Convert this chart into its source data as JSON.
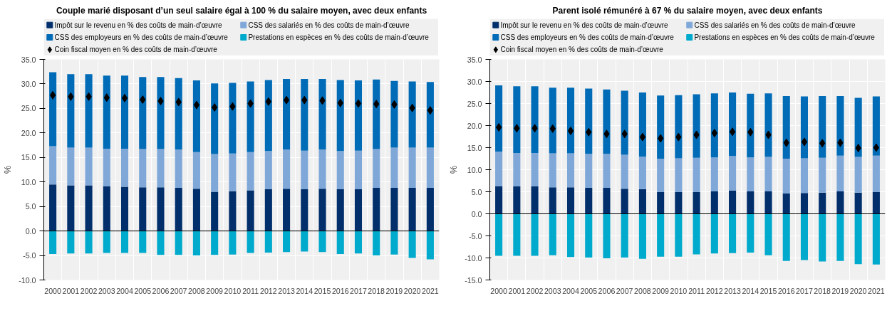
{
  "chart_data": [
    {
      "type": "bar",
      "title": "Couple marié disposant d’un seul salaire égal à 100 % du salaire moyen, avec deux enfants",
      "ylabel": "%",
      "stacked": true,
      "legend": "top",
      "grid": true,
      "categories": [
        "2000",
        "2001",
        "2002",
        "2003",
        "2004",
        "2005",
        "2006",
        "2007",
        "2008",
        "2009",
        "2010",
        "2011",
        "2012",
        "2013",
        "2014",
        "2015",
        "2016",
        "2017",
        "2018",
        "2019",
        "2020",
        "2021"
      ],
      "ylim": [
        -10,
        35
      ],
      "yticks": [
        {
          "value": -10,
          "label": "-10.0"
        },
        {
          "value": -5,
          "label": "-5.0"
        },
        {
          "value": 0,
          "label": "0.0"
        },
        {
          "value": 5,
          "label": "5.0"
        },
        {
          "value": 10,
          "label": "10.0"
        },
        {
          "value": 15,
          "label": "15.0"
        },
        {
          "value": 20,
          "label": "20.0"
        },
        {
          "value": 25,
          "label": "25.0"
        },
        {
          "value": 30,
          "label": "30.0"
        },
        {
          "value": 35,
          "label": "35.0"
        }
      ],
      "series": [
        {
          "name": "Impôt sur le revenu en % des coûts de main-d’œuvre",
          "color": "#002f6c",
          "values": [
            9.5,
            9.3,
            9.3,
            9.1,
            9.0,
            8.9,
            8.9,
            8.8,
            8.6,
            8.0,
            8.1,
            8.3,
            8.5,
            8.6,
            8.5,
            8.6,
            8.5,
            8.5,
            8.8,
            8.8,
            8.8,
            8.8
          ]
        },
        {
          "name": "CSS des salariés en % des coûts de main-d’œuvre",
          "color": "#7fa8d9",
          "values": [
            7.8,
            7.7,
            7.7,
            7.7,
            7.8,
            7.8,
            7.8,
            7.8,
            7.5,
            7.7,
            7.7,
            7.8,
            7.8,
            8.0,
            7.9,
            8.0,
            7.8,
            7.9,
            7.9,
            8.2,
            8.2,
            8.2
          ]
        },
        {
          "name": "CSS des employeurs en % des coûts de main-d’œuvre",
          "color": "#006bb6",
          "values": [
            15.1,
            15.0,
            15.0,
            14.9,
            14.9,
            14.7,
            14.7,
            14.6,
            14.6,
            14.4,
            14.4,
            14.4,
            14.5,
            14.4,
            14.6,
            14.4,
            14.5,
            14.3,
            14.2,
            13.6,
            13.5,
            13.4
          ]
        },
        {
          "name": "Prestations en espèces en % des coûts de main-d’œuvre",
          "color": "#00aacc",
          "values": [
            -4.7,
            -4.6,
            -4.6,
            -4.5,
            -4.5,
            -4.5,
            -4.9,
            -4.9,
            -5.0,
            -4.9,
            -4.8,
            -4.5,
            -4.4,
            -4.3,
            -4.2,
            -4.3,
            -4.7,
            -4.6,
            -5.0,
            -4.8,
            -5.5,
            -5.8
          ]
        },
        {
          "name": "Coin fiscal moyen en % des coûts de main-d’œuvre",
          "type": "scatter",
          "marker": "diamond",
          "color": "#000000",
          "values": [
            27.7,
            27.4,
            27.4,
            27.2,
            27.1,
            26.8,
            26.5,
            26.3,
            25.7,
            25.2,
            25.4,
            26.0,
            26.4,
            26.7,
            26.7,
            26.6,
            26.1,
            26.0,
            25.9,
            25.8,
            25.1,
            24.6
          ]
        }
      ]
    },
    {
      "type": "bar",
      "title": "Parent isolé rémunéré à 67 % du salaire moyen, avec deux enfants",
      "ylabel": "%",
      "stacked": true,
      "legend": "top",
      "grid": true,
      "categories": [
        "2000",
        "2001",
        "2002",
        "2003",
        "2004",
        "2005",
        "2006",
        "2007",
        "2008",
        "2009",
        "2010",
        "2011",
        "2012",
        "2013",
        "2014",
        "2015",
        "2016",
        "2017",
        "2018",
        "2019",
        "2020",
        "2021"
      ],
      "ylim": [
        -15,
        35
      ],
      "yticks": [
        {
          "value": -15,
          "label": "-15.0"
        },
        {
          "value": -10,
          "label": "-10.0"
        },
        {
          "value": -5,
          "label": "-5.0"
        },
        {
          "value": 0,
          "label": "0.0"
        },
        {
          "value": 5,
          "label": "5.0"
        },
        {
          "value": 10,
          "label": "10.0"
        },
        {
          "value": 15,
          "label": "15.0"
        },
        {
          "value": 20,
          "label": "20.0"
        },
        {
          "value": 25,
          "label": "25.0"
        },
        {
          "value": 30,
          "label": "30.0"
        },
        {
          "value": 35,
          "label": "35.0"
        }
      ],
      "series": [
        {
          "name": "Impôt sur le revenu en % des coûts de main-d’œuvre",
          "color": "#002f6c",
          "values": [
            6.3,
            6.2,
            6.2,
            6.0,
            6.0,
            5.9,
            5.9,
            5.7,
            5.6,
            4.9,
            4.9,
            4.9,
            5.1,
            5.3,
            5.1,
            5.1,
            4.6,
            4.7,
            4.8,
            5.1,
            4.8,
            4.9
          ]
        },
        {
          "name": "CSS des salariés en % des coûts de main-d’œuvre",
          "color": "#7fa8d9",
          "values": [
            7.8,
            7.6,
            7.6,
            7.7,
            7.7,
            7.7,
            7.7,
            7.7,
            7.4,
            7.6,
            7.7,
            7.8,
            7.7,
            7.8,
            7.7,
            7.8,
            7.9,
            7.9,
            7.9,
            8.1,
            8.1,
            8.3
          ]
        },
        {
          "name": "CSS des employeurs en % des coûts de main-d’œuvre",
          "color": "#006bb6",
          "values": [
            15.0,
            15.1,
            15.1,
            14.9,
            14.9,
            14.8,
            14.6,
            14.5,
            14.5,
            14.3,
            14.3,
            14.4,
            14.5,
            14.4,
            14.4,
            14.4,
            14.2,
            14.0,
            14.0,
            13.5,
            13.4,
            13.4
          ]
        },
        {
          "name": "Prestations en espèces en % des coûts de main-d’œuvre",
          "color": "#00aacc",
          "values": [
            -9.5,
            -9.5,
            -9.5,
            -9.4,
            -9.8,
            -9.9,
            -10.1,
            -9.9,
            -10.2,
            -9.7,
            -9.7,
            -9.2,
            -9.0,
            -8.9,
            -8.8,
            -9.4,
            -10.7,
            -10.5,
            -10.8,
            -10.7,
            -11.4,
            -11.5
          ]
        },
        {
          "name": "Coin fiscal moyen en % des coûts de main-d’œuvre",
          "type": "scatter",
          "marker": "diamond",
          "color": "#000000",
          "values": [
            19.6,
            19.4,
            19.4,
            19.3,
            18.8,
            18.5,
            18.1,
            18.1,
            17.4,
            17.1,
            17.4,
            17.9,
            18.3,
            18.6,
            18.5,
            17.9,
            16.1,
            16.3,
            16.0,
            16.1,
            14.9,
            15.0
          ]
        }
      ]
    }
  ]
}
